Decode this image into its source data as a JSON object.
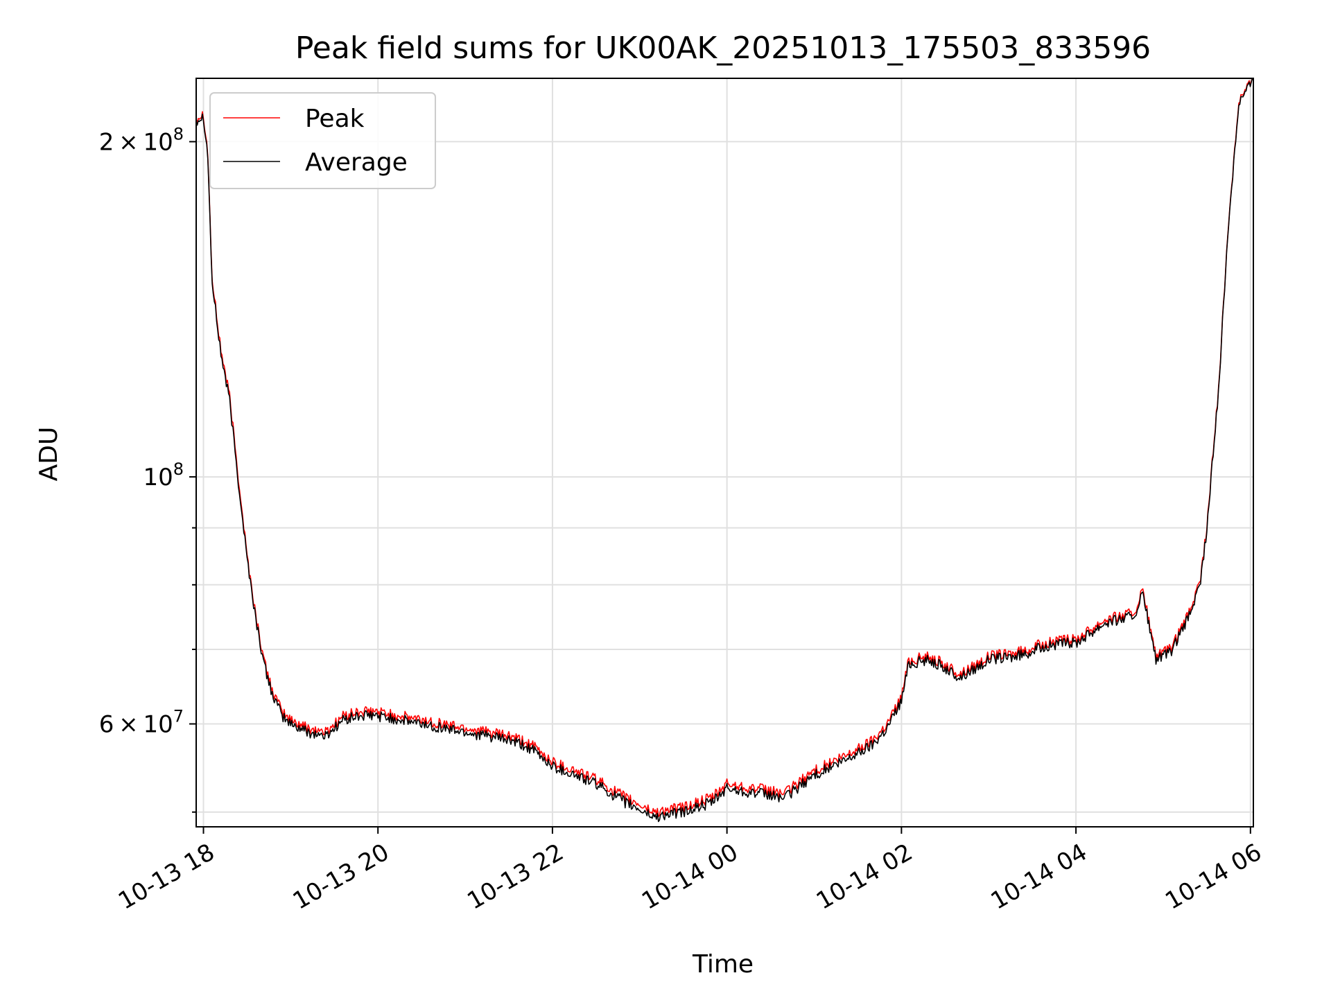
{
  "chart_data": {
    "type": "line",
    "title": "Peak field sums for UK00AK_20251013_175503_833596",
    "xlabel": "Time",
    "ylabel": "ADU",
    "yscale": "log",
    "grid": true,
    "legend_position": "upper-left",
    "xlim": [
      "2025-10-13 17:55",
      "2025-10-14 06:02"
    ],
    "ylim": [
      48500000,
      228000000
    ],
    "xticks": [
      "10-13 18",
      "10-13 20",
      "10-13 22",
      "10-14 00",
      "10-14 02",
      "10-14 04",
      "10-14 06"
    ],
    "xtick_times": [
      "2025-10-13 18:00",
      "2025-10-13 20:00",
      "2025-10-13 22:00",
      "2025-10-14 00:00",
      "2025-10-14 02:00",
      "2025-10-14 04:00",
      "2025-10-14 06:00"
    ],
    "ytick_labels": [
      {
        "value": 200000000,
        "mantissa": "2",
        "exp": "8"
      },
      {
        "value": 100000000,
        "mantissa": "",
        "exp": "8"
      },
      {
        "value": 60000000,
        "mantissa": "6",
        "exp": "7"
      }
    ],
    "minor_yticks": [
      50000000,
      70000000,
      80000000,
      90000000
    ],
    "series": [
      {
        "name": "Peak",
        "color": "#ff0000",
        "x": [
          "2025-10-13 17:55",
          "2025-10-13 18:00",
          "2025-10-13 18:03",
          "2025-10-13 18:06",
          "2025-10-13 18:12",
          "2025-10-13 18:18",
          "2025-10-13 18:24",
          "2025-10-13 18:30",
          "2025-10-13 18:36",
          "2025-10-13 18:42",
          "2025-10-13 18:48",
          "2025-10-13 18:54",
          "2025-10-13 19:00",
          "2025-10-13 19:12",
          "2025-10-13 19:24",
          "2025-10-13 19:36",
          "2025-10-13 19:48",
          "2025-10-13 20:00",
          "2025-10-13 20:30",
          "2025-10-13 21:00",
          "2025-10-13 21:30",
          "2025-10-13 21:45",
          "2025-10-13 22:00",
          "2025-10-13 22:30",
          "2025-10-13 22:50",
          "2025-10-13 23:10",
          "2025-10-13 23:30",
          "2025-10-13 23:50",
          "2025-10-14 00:00",
          "2025-10-14 00:20",
          "2025-10-14 00:40",
          "2025-10-14 01:00",
          "2025-10-14 01:20",
          "2025-10-14 01:40",
          "2025-10-14 01:50",
          "2025-10-14 02:00",
          "2025-10-14 02:05",
          "2025-10-14 02:20",
          "2025-10-14 02:40",
          "2025-10-14 03:00",
          "2025-10-14 03:20",
          "2025-10-14 03:40",
          "2025-10-14 04:00",
          "2025-10-14 04:20",
          "2025-10-14 04:40",
          "2025-10-14 04:46",
          "2025-10-14 04:55",
          "2025-10-14 05:05",
          "2025-10-14 05:15",
          "2025-10-14 05:25",
          "2025-10-14 05:30",
          "2025-10-14 05:38",
          "2025-10-14 05:45",
          "2025-10-14 05:52",
          "2025-10-14 06:02"
        ],
        "y": [
          210000000,
          212000000,
          195000000,
          150000000,
          130000000,
          118000000,
          100000000,
          85000000,
          75000000,
          68000000,
          64000000,
          61500000,
          60500000,
          59500000,
          59000000,
          61000000,
          61500000,
          61500000,
          60500000,
          59500000,
          58500000,
          57500000,
          55500000,
          53500000,
          51500000,
          50000000,
          50500000,
          51500000,
          53000000,
          52500000,
          52000000,
          54500000,
          56000000,
          58000000,
          60000000,
          63500000,
          68500000,
          69000000,
          66500000,
          69000000,
          69500000,
          71000000,
          71500000,
          74500000,
          75500000,
          79000000,
          69000000,
          70000000,
          74000000,
          80000000,
          90000000,
          120000000,
          170000000,
          218000000,
          228000000
        ]
      },
      {
        "name": "Average",
        "color": "#000000",
        "x": [
          "2025-10-13 17:55",
          "2025-10-13 18:00",
          "2025-10-13 18:03",
          "2025-10-13 18:06",
          "2025-10-13 18:12",
          "2025-10-13 18:18",
          "2025-10-13 18:24",
          "2025-10-13 18:30",
          "2025-10-13 18:36",
          "2025-10-13 18:42",
          "2025-10-13 18:48",
          "2025-10-13 18:54",
          "2025-10-13 19:00",
          "2025-10-13 19:12",
          "2025-10-13 19:24",
          "2025-10-13 19:36",
          "2025-10-13 19:48",
          "2025-10-13 20:00",
          "2025-10-13 20:30",
          "2025-10-13 21:00",
          "2025-10-13 21:30",
          "2025-10-13 21:45",
          "2025-10-13 22:00",
          "2025-10-13 22:30",
          "2025-10-13 22:50",
          "2025-10-13 23:10",
          "2025-10-13 23:30",
          "2025-10-13 23:50",
          "2025-10-14 00:00",
          "2025-10-14 00:20",
          "2025-10-14 00:40",
          "2025-10-14 01:00",
          "2025-10-14 01:20",
          "2025-10-14 01:40",
          "2025-10-14 01:50",
          "2025-10-14 02:00",
          "2025-10-14 02:05",
          "2025-10-14 02:20",
          "2025-10-14 02:40",
          "2025-10-14 03:00",
          "2025-10-14 03:20",
          "2025-10-14 03:40",
          "2025-10-14 04:00",
          "2025-10-14 04:20",
          "2025-10-14 04:40",
          "2025-10-14 04:46",
          "2025-10-14 04:55",
          "2025-10-14 05:05",
          "2025-10-14 05:15",
          "2025-10-14 05:25",
          "2025-10-14 05:30",
          "2025-10-14 05:38",
          "2025-10-14 05:45",
          "2025-10-14 05:52",
          "2025-10-14 06:02"
        ],
        "y": [
          209000000,
          211000000,
          194000000,
          149000000,
          129000000,
          117000000,
          99000000,
          84500000,
          74500000,
          67500000,
          63500000,
          61000000,
          60000000,
          59000000,
          58500000,
          60500000,
          61000000,
          61000000,
          60000000,
          59000000,
          58000000,
          57000000,
          55000000,
          53000000,
          51000000,
          49500000,
          50000000,
          51000000,
          52500000,
          52000000,
          51500000,
          54000000,
          55500000,
          57500000,
          59500000,
          63000000,
          68000000,
          68500000,
          66000000,
          68500000,
          69000000,
          70500000,
          71000000,
          74000000,
          75000000,
          78500000,
          68500000,
          69500000,
          73500000,
          79500000,
          89500000,
          119500000,
          169500000,
          217000000,
          227500000
        ]
      }
    ]
  }
}
